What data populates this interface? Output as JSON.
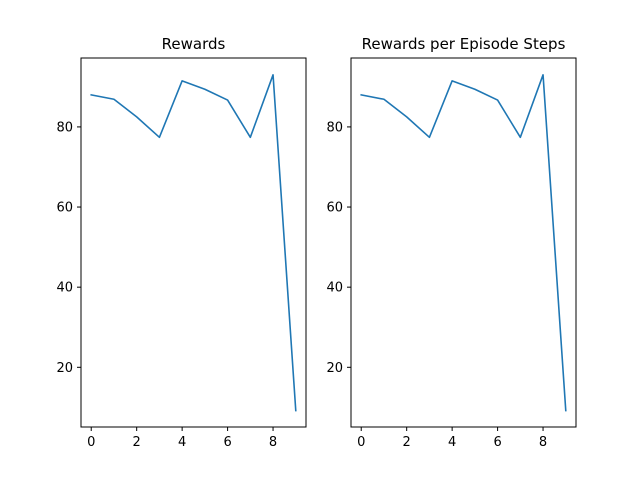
{
  "chart_data": [
    {
      "type": "line",
      "title": "Rewards",
      "xlabel": "",
      "ylabel": "",
      "xlim": [
        -0.45,
        9.45
      ],
      "ylim": [
        5.1,
        97.2
      ],
      "xticks": [
        0,
        2,
        4,
        6,
        8
      ],
      "yticks": [
        20,
        40,
        60,
        80
      ],
      "grid": false,
      "series": [
        {
          "color": "#1f77b4",
          "x": [
            0,
            1,
            2,
            3,
            4,
            5,
            6,
            7,
            8,
            9
          ],
          "y": [
            88.0,
            86.9,
            82.5,
            77.4,
            91.5,
            89.4,
            86.7,
            77.4,
            93.0,
            9.2
          ]
        }
      ]
    },
    {
      "type": "line",
      "title": "Rewards per Episode Steps",
      "xlabel": "",
      "ylabel": "",
      "xlim": [
        -0.45,
        9.45
      ],
      "ylim": [
        5.1,
        97.2
      ],
      "xticks": [
        0,
        2,
        4,
        6,
        8
      ],
      "yticks": [
        20,
        40,
        60,
        80
      ],
      "grid": false,
      "series": [
        {
          "color": "#1f77b4",
          "x": [
            0,
            1,
            2,
            3,
            4,
            5,
            6,
            7,
            8,
            9
          ],
          "y": [
            88.0,
            86.9,
            82.5,
            77.4,
            91.5,
            89.4,
            86.7,
            77.4,
            93.0,
            9.2
          ]
        }
      ]
    }
  ]
}
